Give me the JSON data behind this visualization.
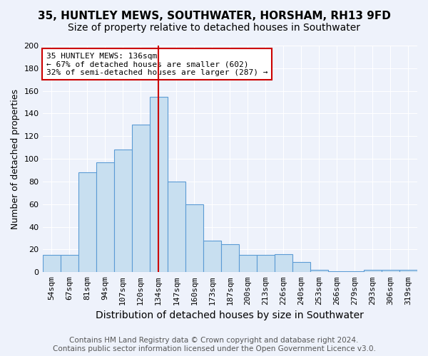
{
  "title": "35, HUNTLEY MEWS, SOUTHWATER, HORSHAM, RH13 9FD",
  "subtitle": "Size of property relative to detached houses in Southwater",
  "xlabel": "Distribution of detached houses by size in Southwater",
  "ylabel": "Number of detached properties",
  "categories": [
    "54sqm",
    "67sqm",
    "81sqm",
    "94sqm",
    "107sqm",
    "120sqm",
    "134sqm",
    "147sqm",
    "160sqm",
    "173sqm",
    "187sqm",
    "200sqm",
    "213sqm",
    "226sqm",
    "240sqm",
    "253sqm",
    "266sqm",
    "279sqm",
    "293sqm",
    "306sqm",
    "319sqm"
  ],
  "values": [
    15,
    15,
    88,
    97,
    108,
    130,
    155,
    80,
    60,
    28,
    25,
    15,
    15,
    16,
    9,
    2,
    1,
    1,
    2,
    2,
    2
  ],
  "bar_color": "#c8dff0",
  "bar_edge_color": "#5b9bd5",
  "annotation_line1": "35 HUNTLEY MEWS: 136sqm",
  "annotation_line2": "← 67% of detached houses are smaller (602)",
  "annotation_line3": "32% of semi-detached houses are larger (287) →",
  "annotation_box_color": "#ffffff",
  "annotation_box_edge_color": "#cc0000",
  "vline_x_index": 6,
  "vline_color": "#cc0000",
  "ylim": [
    0,
    200
  ],
  "yticks": [
    0,
    20,
    40,
    60,
    80,
    100,
    120,
    140,
    160,
    180,
    200
  ],
  "footer1": "Contains HM Land Registry data © Crown copyright and database right 2024.",
  "footer2": "Contains public sector information licensed under the Open Government Licence v3.0.",
  "bg_color": "#eef2fb",
  "grid_color": "#ffffff",
  "title_fontsize": 11,
  "subtitle_fontsize": 10,
  "xlabel_fontsize": 10,
  "ylabel_fontsize": 9,
  "tick_fontsize": 8,
  "annot_fontsize": 8,
  "footer_fontsize": 7.5
}
